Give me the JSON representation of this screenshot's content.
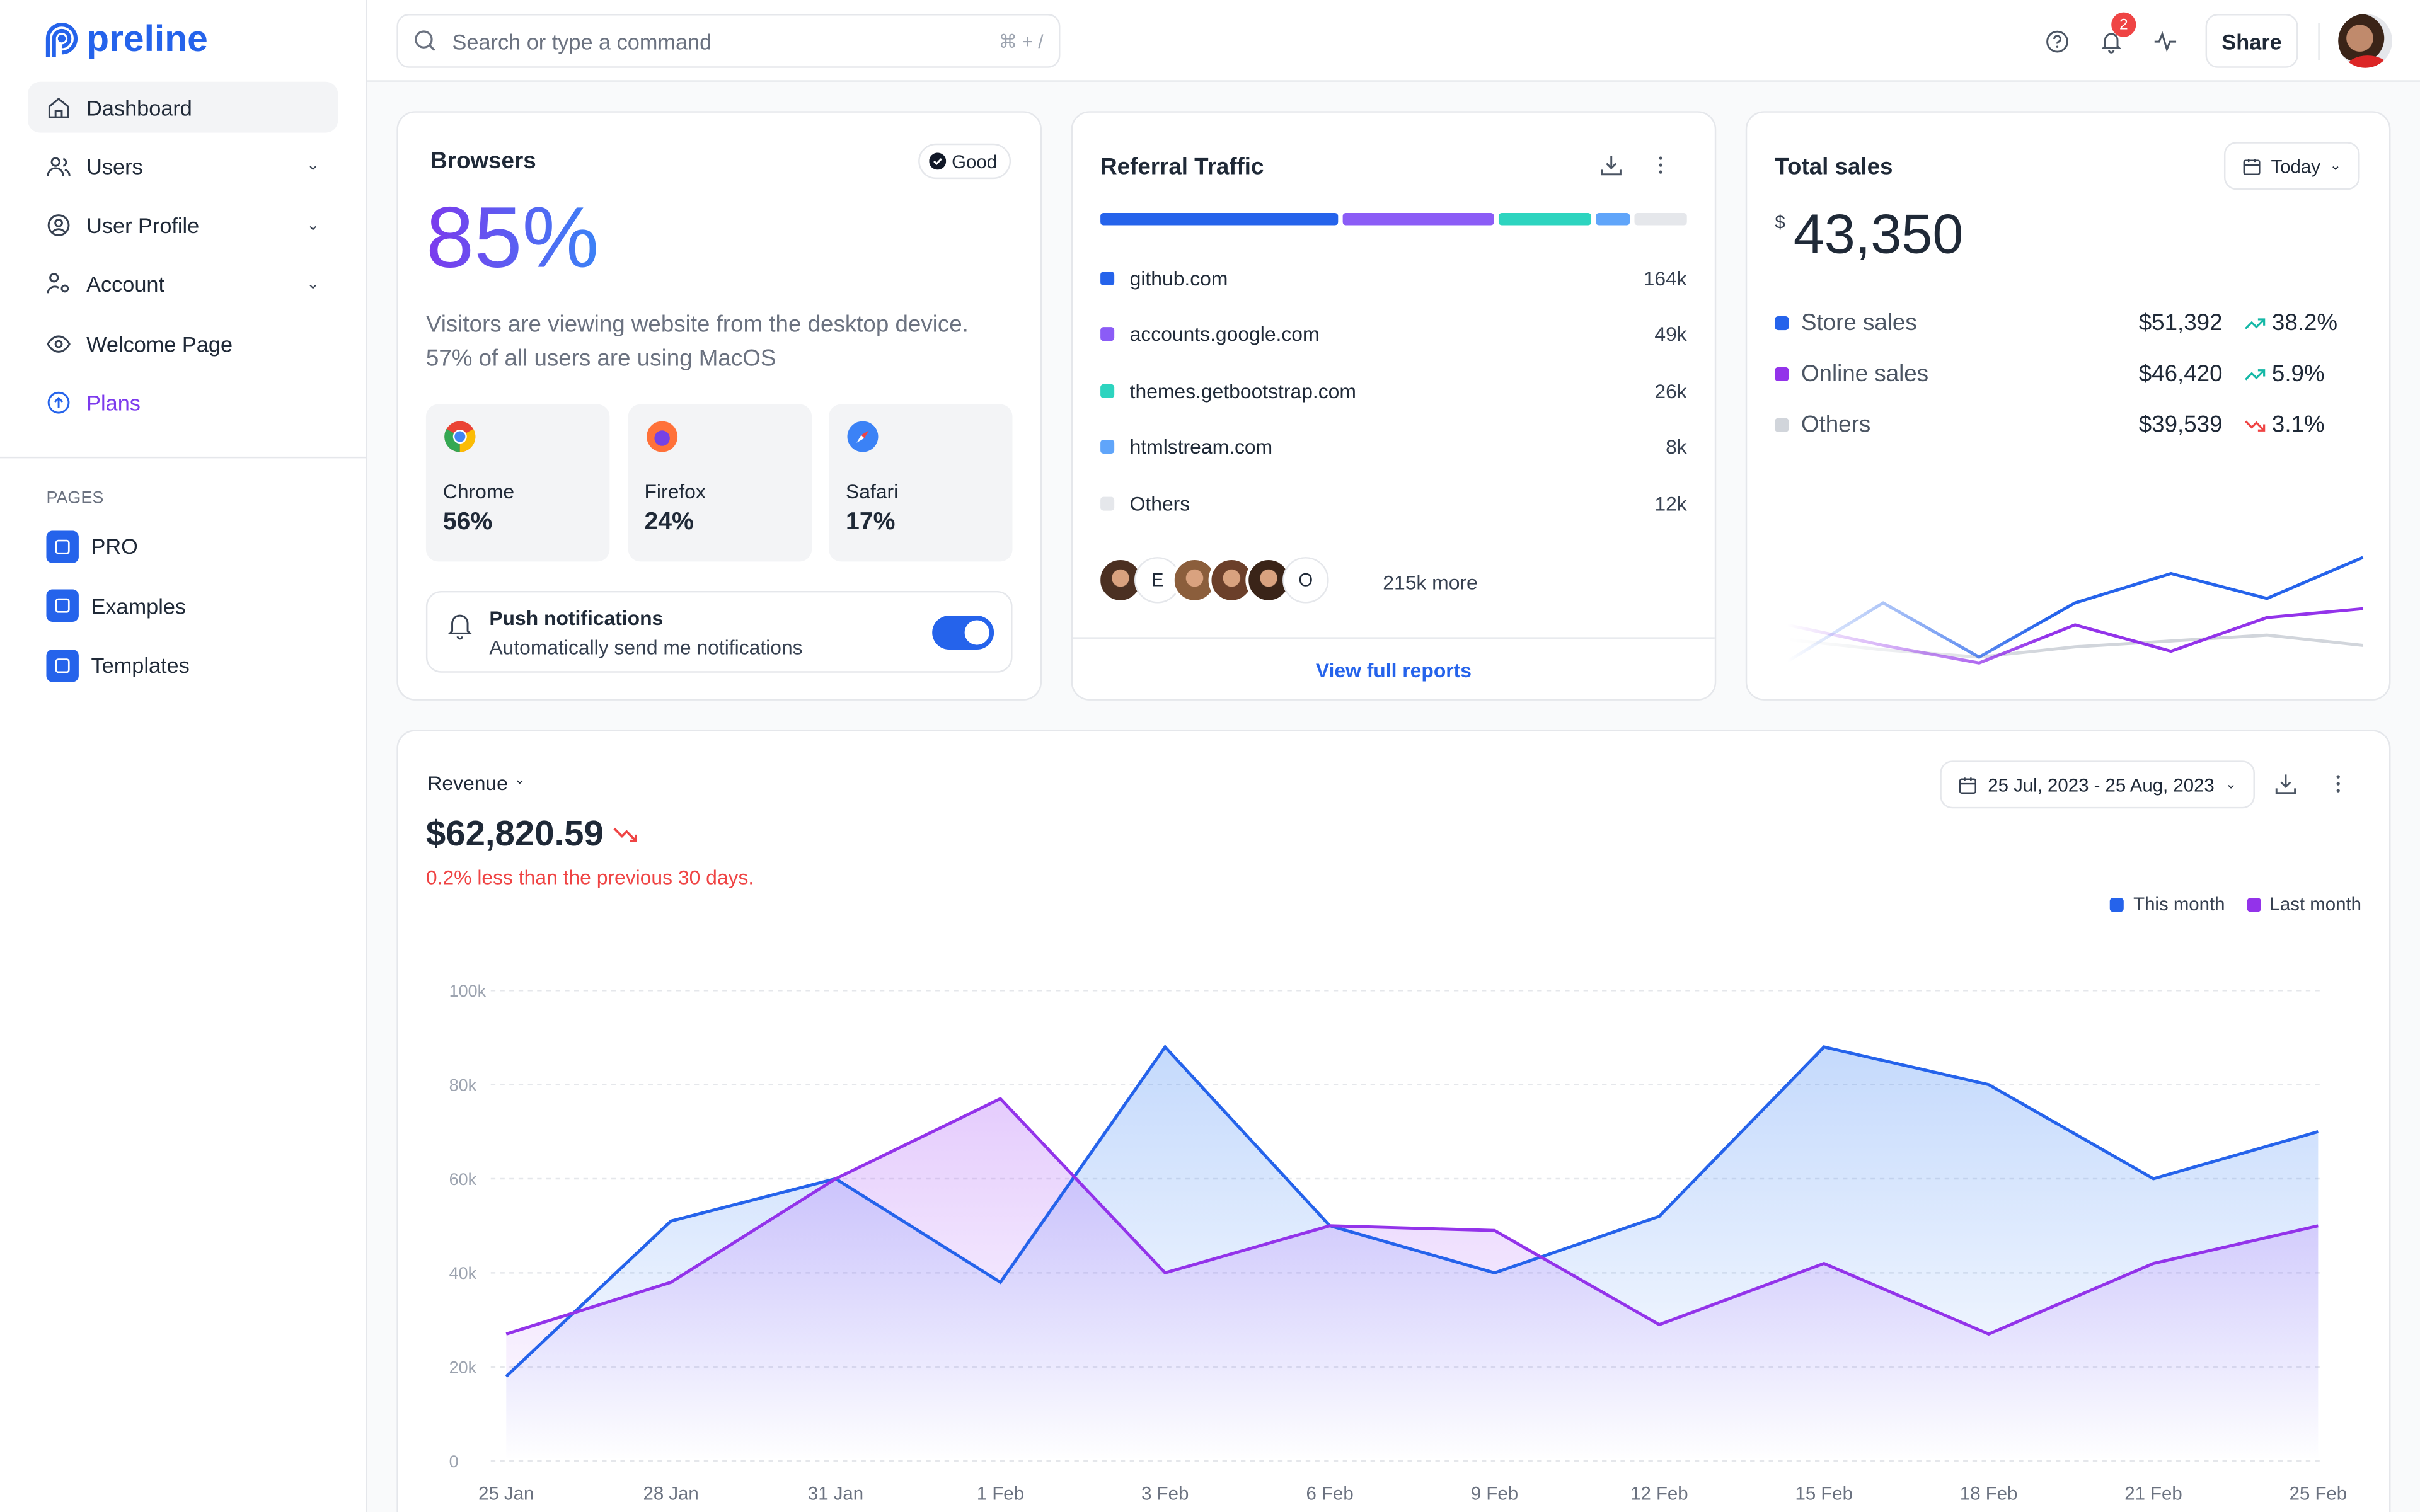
{
  "brand": {
    "name": "preline",
    "color": "#2563eb"
  },
  "sidebar": {
    "items": [
      {
        "label": "Dashboard",
        "icon": "home-icon",
        "active": true
      },
      {
        "label": "Users",
        "icon": "users-icon",
        "chevron": true
      },
      {
        "label": "User Profile",
        "icon": "user-circle-icon",
        "chevron": true
      },
      {
        "label": "Account",
        "icon": "user-cog-icon",
        "chevron": true
      },
      {
        "label": "Welcome Page",
        "icon": "eye-icon"
      },
      {
        "label": "Plans",
        "icon": "arrow-up-circle-icon"
      }
    ],
    "pages_heading": "PAGES",
    "pages": [
      {
        "label": "PRO",
        "icon": "box-icon"
      },
      {
        "label": "Examples",
        "icon": "layout-icon"
      },
      {
        "label": "Templates",
        "icon": "window-icon"
      }
    ]
  },
  "header": {
    "search_placeholder": "Search or type a command",
    "shortcut": "⌘ + /",
    "notifications_count": "2",
    "share_label": "Share"
  },
  "browsers": {
    "title": "Browsers",
    "badge": "Good",
    "big": "85%",
    "desc": "Visitors are viewing website from the desktop device. 57% of all users are using MacOS",
    "items": [
      {
        "name": "Chrome",
        "pct": "56%"
      },
      {
        "name": "Firefox",
        "pct": "24%"
      },
      {
        "name": "Safari",
        "pct": "17%"
      }
    ],
    "push_title": "Push notifications",
    "push_desc": "Automatically send me notifications",
    "push_enabled": true
  },
  "referral": {
    "title": "Referral Traffic",
    "rows": [
      {
        "name": "github.com",
        "value": "164k",
        "color": "#2563eb"
      },
      {
        "name": "accounts.google.com",
        "value": "49k",
        "color": "#8b5cf6"
      },
      {
        "name": "themes.getbootstrap.com",
        "value": "26k",
        "color": "#2dd4bf"
      },
      {
        "name": "htmlstream.com",
        "value": "8k",
        "color": "#60a5fa"
      },
      {
        "name": "Others",
        "value": "12k",
        "color": "#e5e7eb"
      }
    ],
    "bar_shares": [
      41,
      26,
      16,
      6,
      9
    ],
    "avatar_initials": [
      "E",
      "O"
    ],
    "more": "215k more",
    "link": "View full reports"
  },
  "total_sales": {
    "title": "Total sales",
    "range": "Today",
    "currency": "$",
    "total": "43,350",
    "rows": [
      {
        "label": "Store sales",
        "amount": "$51,392",
        "change": "38.2%",
        "trend": "up",
        "color": "#2563eb"
      },
      {
        "label": "Online sales",
        "amount": "$46,420",
        "change": "5.9%",
        "trend": "up",
        "color": "#9333ea"
      },
      {
        "label": "Others",
        "amount": "$39,539",
        "change": "3.1%",
        "trend": "down",
        "color": "#d1d5db"
      }
    ],
    "spark": {
      "store": [
        15,
        55,
        18,
        55,
        75,
        58,
        86
      ],
      "online": [
        40,
        26,
        14,
        40,
        22,
        45,
        51
      ],
      "others": [
        30,
        23,
        18,
        25,
        29,
        33,
        26
      ]
    }
  },
  "revenue": {
    "title": "Revenue",
    "amount": "$62,820.59",
    "note": "0.2% less than the previous 30 days.",
    "date_range": "25 Jul, 2023 - 25 Aug, 2023",
    "legend": [
      "This month",
      "Last month"
    ]
  },
  "chart_data": {
    "type": "area",
    "x": [
      "25 Jan",
      "28 Jan",
      "31 Jan",
      "1 Feb",
      "3 Feb",
      "6 Feb",
      "9 Feb",
      "12 Feb",
      "15 Feb",
      "18 Feb",
      "21 Feb",
      "25 Feb"
    ],
    "yticks": [
      "0",
      "20k",
      "40k",
      "60k",
      "80k",
      "100k"
    ],
    "ylim": [
      0,
      100000
    ],
    "grid": true,
    "legend_position": "top-right",
    "series": [
      {
        "name": "This month",
        "color": "#2563eb",
        "values": [
          18000,
          51000,
          60000,
          38000,
          88000,
          50000,
          40000,
          52000,
          88000,
          80000,
          60000,
          70000
        ]
      },
      {
        "name": "Last month",
        "color": "#9333ea",
        "values": [
          27000,
          38000,
          60000,
          77000,
          40000,
          50000,
          49000,
          29000,
          42000,
          27000,
          42000,
          50000
        ]
      }
    ]
  }
}
